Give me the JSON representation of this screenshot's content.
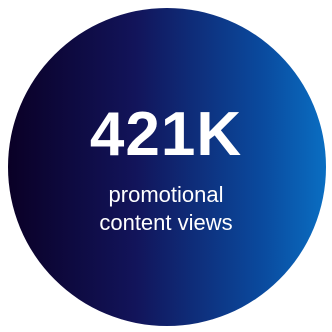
{
  "stat": {
    "value": "421K",
    "caption_line1": "promotional",
    "caption_line2": "content views"
  },
  "colors": {
    "gradient_start": "#0a0026",
    "gradient_mid": "#12145a",
    "gradient_end": "#0a6ec2",
    "text": "#ffffff",
    "background": "#ffffff"
  }
}
